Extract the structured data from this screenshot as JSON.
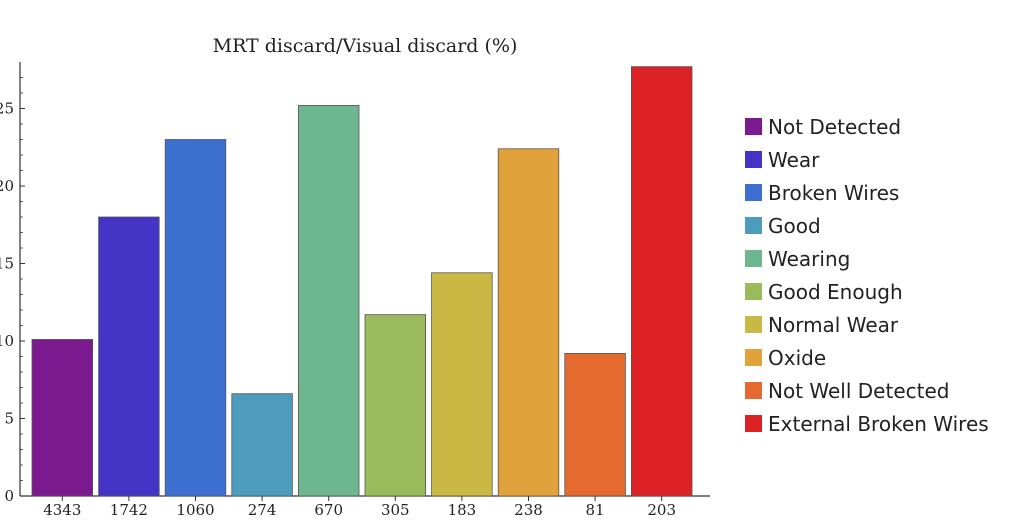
{
  "chart_data": {
    "type": "bar",
    "title": "MRT discard/Visual discard (%)",
    "xlabel": "",
    "ylabel": "",
    "ylim": [
      0,
      28
    ],
    "yticks": [
      0,
      5,
      10,
      15,
      20,
      25
    ],
    "ytick_labels": [
      "0",
      "5",
      "10",
      "15",
      "20",
      "25"
    ],
    "categories": [
      "4343",
      "1742",
      "1060",
      "274",
      "670",
      "305",
      "183",
      "238",
      "81",
      "203"
    ],
    "values": [
      10.1,
      18.0,
      23.0,
      6.6,
      25.2,
      11.7,
      14.4,
      22.4,
      9.2,
      27.7
    ],
    "series_names": [
      "Not Detected",
      "Wear",
      "Broken Wires",
      "Good",
      "Wearing",
      "Good Enough",
      "Normal Wear",
      "Oxide",
      "Not Well Detected",
      "External Broken Wires"
    ],
    "colors": [
      "#7a1a8e",
      "#4433c4",
      "#3d6fd1",
      "#4d9cbd",
      "#6db68e",
      "#9abb5c",
      "#c9b944",
      "#e2a23b",
      "#e56a2f",
      "#dd2226"
    ],
    "legend_position": "right",
    "grid": false
  }
}
